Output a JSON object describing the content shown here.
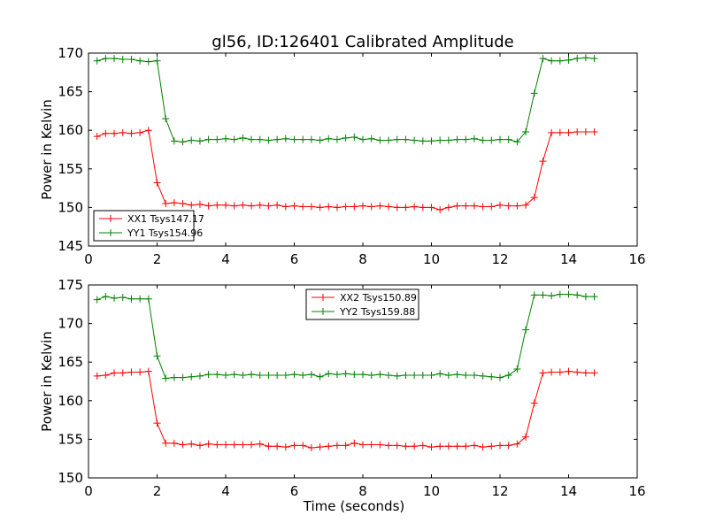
{
  "title": "gl56, ID:126401 Calibrated Amplitude",
  "colors": {
    "red": "#ff0000",
    "green": "#008000",
    "axes": "#000000",
    "background": "#ffffff"
  },
  "chart_data": [
    {
      "type": "line",
      "xlabel": "",
      "ylabel": "Power in Kelvin",
      "xlim": [
        0,
        16
      ],
      "ylim": [
        145,
        170
      ],
      "xticks": [
        "0",
        "2",
        "4",
        "6",
        "8",
        "10",
        "12",
        "14",
        "16"
      ],
      "yticks": [
        "145",
        "150",
        "155",
        "160",
        "165",
        "170"
      ],
      "grid": false,
      "legend_placement": "lower-left",
      "x": [
        0.25,
        0.5,
        0.75,
        1.0,
        1.25,
        1.5,
        1.75,
        2.0,
        2.25,
        2.5,
        2.75,
        3.0,
        3.25,
        3.5,
        3.75,
        4.0,
        4.25,
        4.5,
        4.75,
        5.0,
        5.25,
        5.5,
        5.75,
        6.0,
        6.25,
        6.5,
        6.75,
        7.0,
        7.25,
        7.5,
        7.75,
        8.0,
        8.25,
        8.5,
        8.75,
        9.0,
        9.25,
        9.5,
        9.75,
        10.0,
        10.25,
        10.5,
        10.75,
        11.0,
        11.25,
        11.5,
        11.75,
        12.0,
        12.25,
        12.5,
        12.75,
        13.0,
        13.25,
        13.5,
        13.75,
        14.0,
        14.25,
        14.5,
        14.75
      ],
      "series": [
        {
          "name": "XX1 Tsys147.17",
          "color": "#ff0000",
          "values": [
            159.2,
            159.6,
            159.6,
            159.7,
            159.6,
            159.7,
            160.0,
            153.2,
            150.5,
            150.6,
            150.5,
            150.3,
            150.4,
            150.2,
            150.3,
            150.3,
            150.2,
            150.3,
            150.2,
            150.3,
            150.2,
            150.3,
            150.1,
            150.2,
            150.1,
            150.1,
            150.0,
            150.1,
            150.0,
            150.1,
            150.1,
            150.2,
            150.1,
            150.2,
            150.1,
            150.0,
            150.0,
            150.1,
            150.0,
            150.0,
            149.7,
            150.0,
            150.2,
            150.2,
            150.2,
            150.1,
            150.1,
            150.3,
            150.2,
            150.2,
            150.3,
            151.3,
            156.0,
            159.7,
            159.7,
            159.7,
            159.8,
            159.8,
            159.8
          ]
        },
        {
          "name": "YY1 Tsys154.96",
          "color": "#008000",
          "values": [
            169.0,
            169.3,
            169.3,
            169.2,
            169.2,
            169.0,
            168.9,
            169.0,
            161.5,
            158.6,
            158.5,
            158.7,
            158.6,
            158.8,
            158.8,
            158.9,
            158.8,
            159.0,
            158.8,
            158.8,
            158.7,
            158.8,
            158.9,
            158.8,
            158.8,
            158.8,
            158.7,
            158.9,
            158.8,
            159.0,
            159.1,
            158.8,
            158.9,
            158.7,
            158.7,
            158.8,
            158.8,
            158.7,
            158.6,
            158.6,
            158.7,
            158.7,
            158.8,
            158.8,
            158.9,
            158.7,
            158.7,
            158.8,
            158.8,
            158.5,
            159.8,
            164.8,
            169.3,
            169.0,
            169.0,
            169.1,
            169.3,
            169.4,
            169.3
          ]
        }
      ]
    },
    {
      "type": "line",
      "xlabel": "Time (seconds)",
      "ylabel": "Power in Kelvin",
      "xlim": [
        0,
        16
      ],
      "ylim": [
        150,
        175
      ],
      "xticks": [
        "0",
        "2",
        "4",
        "6",
        "8",
        "10",
        "12",
        "14",
        "16"
      ],
      "yticks": [
        "150",
        "155",
        "160",
        "165",
        "170",
        "175"
      ],
      "grid": false,
      "legend_placement": "upper-center",
      "x": [
        0.25,
        0.5,
        0.75,
        1.0,
        1.25,
        1.5,
        1.75,
        2.0,
        2.25,
        2.5,
        2.75,
        3.0,
        3.25,
        3.5,
        3.75,
        4.0,
        4.25,
        4.5,
        4.75,
        5.0,
        5.25,
        5.5,
        5.75,
        6.0,
        6.25,
        6.5,
        6.75,
        7.0,
        7.25,
        7.5,
        7.75,
        8.0,
        8.25,
        8.5,
        8.75,
        9.0,
        9.25,
        9.5,
        9.75,
        10.0,
        10.25,
        10.5,
        10.75,
        11.0,
        11.25,
        11.5,
        11.75,
        12.0,
        12.25,
        12.5,
        12.75,
        13.0,
        13.25,
        13.5,
        13.75,
        14.0,
        14.25,
        14.5,
        14.75
      ],
      "series": [
        {
          "name": "XX2 Tsys150.89",
          "color": "#ff0000",
          "values": [
            163.2,
            163.3,
            163.6,
            163.6,
            163.7,
            163.7,
            163.8,
            157.1,
            154.5,
            154.5,
            154.3,
            154.4,
            154.2,
            154.4,
            154.3,
            154.3,
            154.3,
            154.3,
            154.3,
            154.4,
            154.1,
            154.1,
            154.0,
            154.2,
            154.2,
            153.9,
            154.0,
            154.1,
            154.2,
            154.2,
            154.5,
            154.3,
            154.3,
            154.3,
            154.2,
            154.2,
            154.1,
            154.1,
            154.2,
            154.0,
            154.1,
            154.1,
            154.1,
            154.1,
            154.2,
            154.0,
            154.1,
            154.2,
            154.2,
            154.4,
            155.3,
            159.7,
            163.6,
            163.7,
            163.7,
            163.8,
            163.7,
            163.6,
            163.6
          ]
        },
        {
          "name": "YY2 Tsys159.88",
          "color": "#008000",
          "values": [
            173.1,
            173.5,
            173.3,
            173.4,
            173.2,
            173.2,
            173.2,
            165.8,
            162.9,
            163.0,
            163.0,
            163.1,
            163.2,
            163.4,
            163.4,
            163.3,
            163.4,
            163.3,
            163.4,
            163.3,
            163.3,
            163.3,
            163.3,
            163.4,
            163.3,
            163.4,
            163.1,
            163.5,
            163.4,
            163.5,
            163.4,
            163.4,
            163.3,
            163.4,
            163.3,
            163.2,
            163.3,
            163.3,
            163.3,
            163.3,
            163.5,
            163.3,
            163.4,
            163.3,
            163.3,
            163.2,
            163.1,
            163.0,
            163.3,
            164.1,
            169.2,
            173.7,
            173.7,
            173.6,
            173.8,
            173.8,
            173.7,
            173.5,
            173.5
          ]
        }
      ]
    }
  ]
}
